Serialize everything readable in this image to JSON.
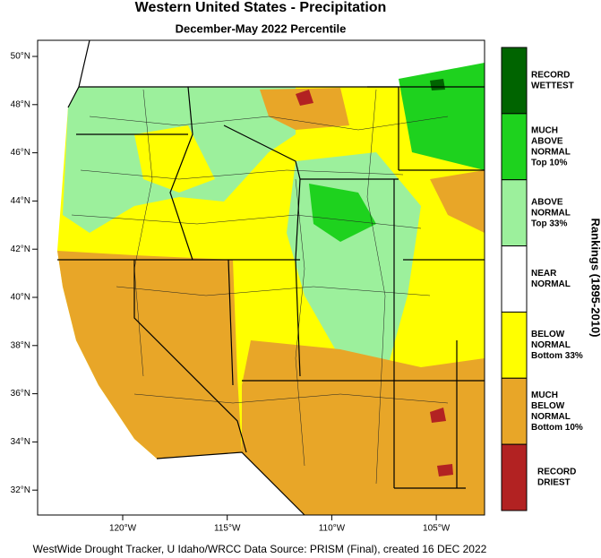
{
  "header": {
    "title": "Western United States - Precipitation",
    "subtitle": "December-May 2022 Percentile"
  },
  "map": {
    "lat_labels": [
      "50°N",
      "48°N",
      "46°N",
      "44°N",
      "42°N",
      "40°N",
      "38°N",
      "36°N",
      "34°N",
      "32°N"
    ],
    "lon_labels": [
      "120°W",
      "115°W",
      "110°W",
      "105°W"
    ]
  },
  "legend": {
    "title": "Rankings (1895-2010)",
    "items": [
      {
        "lines": [
          "RECORD",
          "WETTEST"
        ],
        "color": "#006400"
      },
      {
        "lines": [
          "MUCH",
          "ABOVE",
          "NORMAL",
          "Top 10%"
        ],
        "color": "#1ed21e"
      },
      {
        "lines": [
          "ABOVE",
          "NORMAL",
          "Top 33%"
        ],
        "color": "#9cf09c"
      },
      {
        "lines": [
          "NEAR",
          "NORMAL"
        ],
        "color": "#ffffff"
      },
      {
        "lines": [
          "BELOW",
          "NORMAL",
          "Bottom 33%"
        ],
        "color": "#ffff00"
      },
      {
        "lines": [
          "MUCH",
          "BELOW",
          "NORMAL",
          "Bottom 10%"
        ],
        "color": "#e8a628"
      },
      {
        "lines": [
          "RECORD",
          "DRIEST"
        ],
        "color": "#b22222"
      }
    ]
  },
  "footer": {
    "credit": "WestWide Drought Tracker, U Idaho/WRCC Data Source: PRISM (Final), created 16 DEC 2022"
  }
}
